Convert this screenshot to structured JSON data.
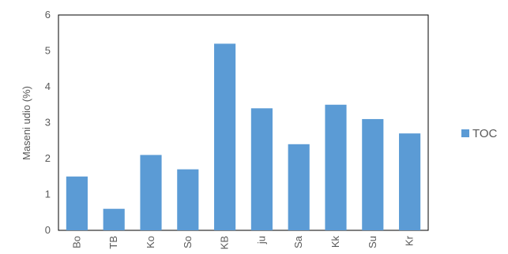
{
  "chart_data": {
    "type": "bar",
    "categories": [
      "Bo",
      "TB",
      "Ko",
      "So",
      "KB",
      "ju",
      "Sa",
      "Kk",
      "Su",
      "Kr"
    ],
    "series": [
      {
        "name": "TOC",
        "values": [
          1.5,
          0.6,
          2.1,
          1.7,
          5.2,
          3.4,
          2.4,
          3.5,
          3.1,
          2.7
        ]
      }
    ],
    "ylabel": "Maseni udio (%)",
    "xlabel": "",
    "ylim": [
      0,
      6
    ],
    "yticks": [
      0,
      1,
      2,
      3,
      4,
      5,
      6
    ],
    "grid": false,
    "legend_position": "right",
    "colors": {
      "bar": "#5b9bd5",
      "axis": "#000000",
      "text": "#595959"
    }
  }
}
